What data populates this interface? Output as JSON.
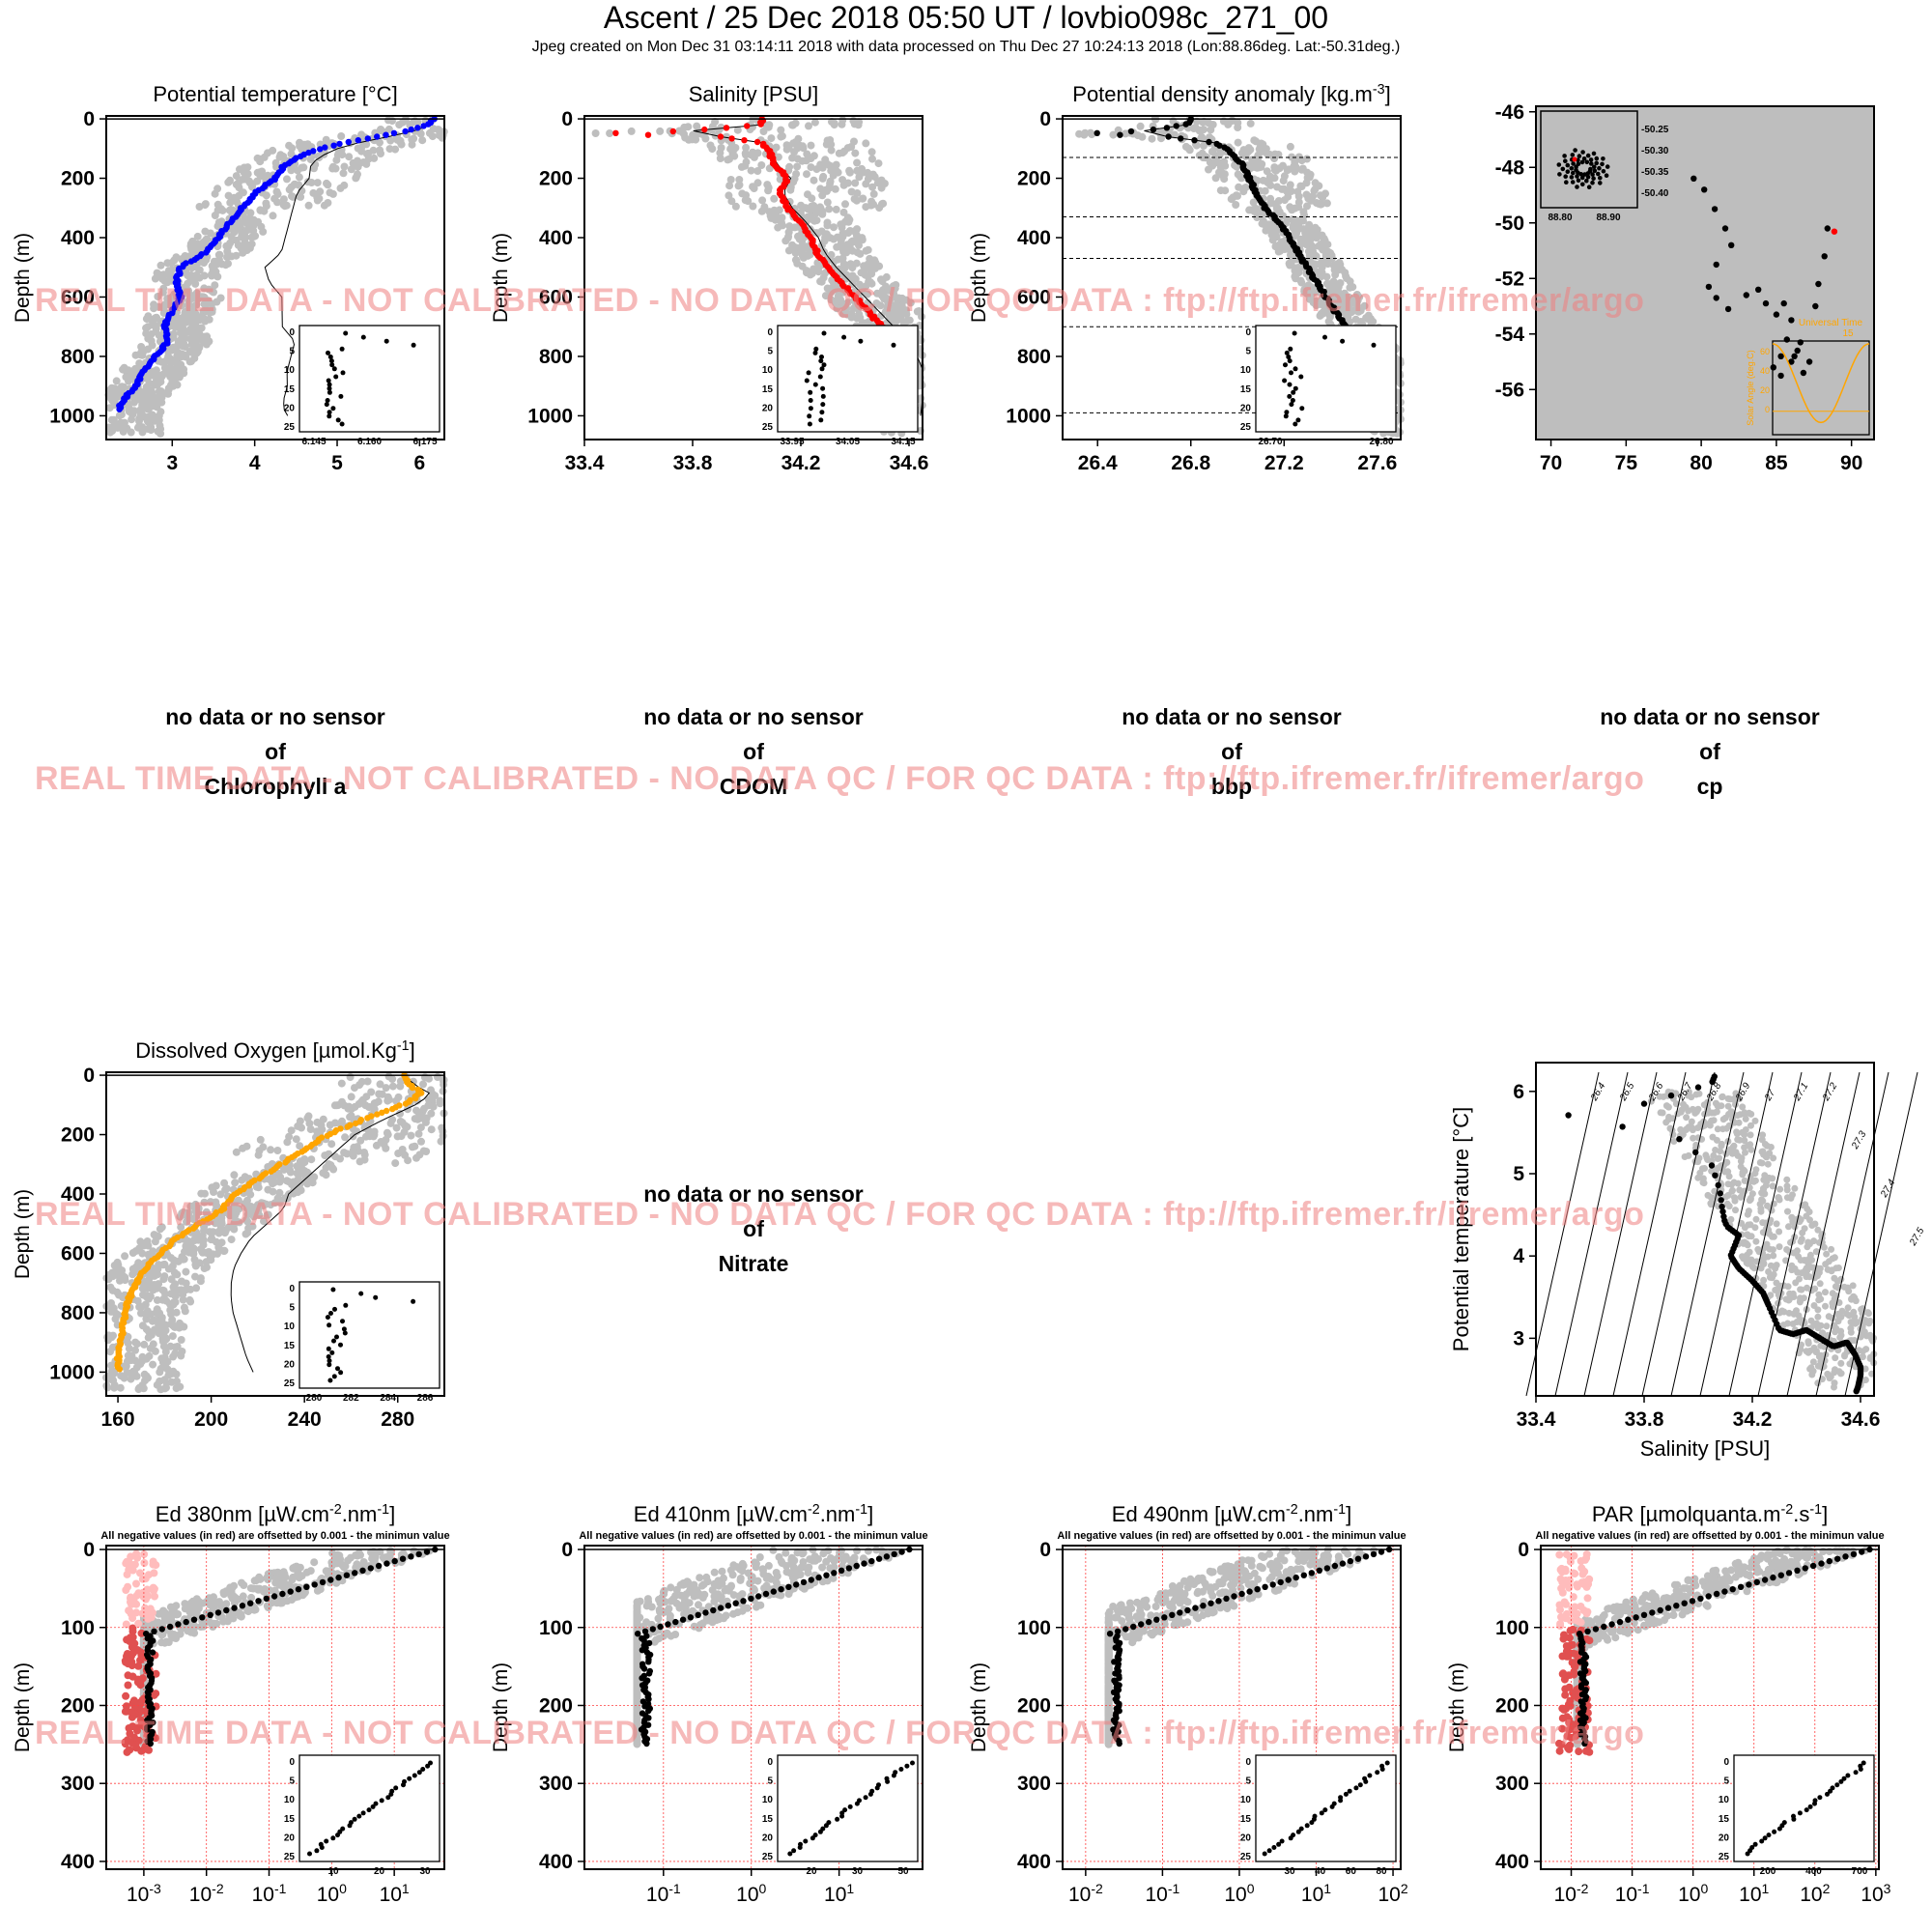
{
  "header": {
    "title": "Ascent / 25 Dec 2018 05:50 UT /  lovbio098c_271_00",
    "subtitle": "Jpeg created on Mon Dec 31 03:14:11 2018 with data processed on Thu Dec 27 10:24:13 2018 (Lon:88.86deg. Lat:-50.31deg.)"
  },
  "watermark": "REAL TIME DATA - NOT CALIBRATED - NO DATA QC   /  FOR QC DATA : ftp://ftp.ifremer.fr/ifremer/argo",
  "colors": {
    "background": "#bebebe",
    "temperature": "#0000ff",
    "salinity": "#ff0000",
    "density": "#000000",
    "oxygen": "#ffa500",
    "negative": "#ff8080",
    "watermark": "#f08080",
    "grid": "#ff4040"
  },
  "no_data_panels": [
    {
      "line1": "no data or no sensor",
      "line2": "of",
      "line3": "Chlorophyll a"
    },
    {
      "line1": "no data or no sensor",
      "line2": "of",
      "line3": "CDOM"
    },
    {
      "line1": "no data or no sensor",
      "line2": "of",
      "line3": "bbp"
    },
    {
      "line1": "no data or no sensor",
      "line2": "of",
      "line3": "cp"
    },
    {
      "line1": "no data or no sensor",
      "line2": "of",
      "line3": "Nitrate"
    }
  ],
  "chart_data": [
    {
      "id": "temperature",
      "type": "scatter",
      "title": "Potential temperature [°C]",
      "ylabel": "Depth (m)",
      "xlim": [
        2.2,
        6.3
      ],
      "ylim": [
        1080,
        -10
      ],
      "y_reversed": true,
      "xticks": [
        "3",
        "4",
        "5",
        "6"
      ],
      "yticks": [
        "0",
        "200",
        "400",
        "600",
        "800",
        "1000"
      ],
      "profile_depth": [
        0,
        20,
        40,
        60,
        80,
        100,
        120,
        140,
        160,
        180,
        200,
        250,
        300,
        350,
        400,
        450,
        500,
        550,
        600,
        650,
        700,
        750,
        800,
        850,
        900,
        950,
        980
      ],
      "profile_values": [
        6.18,
        6.1,
        5.85,
        5.5,
        5.1,
        4.8,
        4.6,
        4.45,
        4.35,
        4.3,
        4.25,
        4.0,
        3.85,
        3.7,
        3.55,
        3.4,
        3.1,
        3.05,
        3.1,
        3.0,
        2.9,
        2.95,
        2.8,
        2.65,
        2.55,
        2.4,
        2.35
      ],
      "inset": {
        "xticks": [
          "6.145",
          "6.160",
          "6.175"
        ],
        "yticks": [
          "0",
          "5",
          "10",
          "15",
          "20",
          "25"
        ]
      }
    },
    {
      "id": "salinity",
      "type": "scatter",
      "title": "Salinity [PSU]",
      "ylabel": "Depth (m)",
      "xlim": [
        33.4,
        34.65
      ],
      "ylim": [
        1080,
        -10
      ],
      "y_reversed": true,
      "xticks": [
        "33.4",
        "33.8",
        "34.2",
        "34.6"
      ],
      "yticks": [
        "0",
        "200",
        "400",
        "600",
        "800",
        "1000"
      ],
      "profile_depth": [
        0,
        20,
        40,
        50,
        60,
        80,
        100,
        150,
        200,
        250,
        300,
        350,
        400,
        450,
        500,
        550,
        600,
        650,
        700,
        750,
        800,
        850,
        900,
        950,
        1000
      ],
      "profile_values": [
        34.06,
        34.05,
        33.8,
        33.45,
        33.9,
        34.05,
        34.08,
        34.1,
        34.15,
        34.12,
        34.15,
        34.2,
        34.24,
        34.26,
        34.3,
        34.35,
        34.4,
        34.45,
        34.5,
        34.55,
        34.58,
        34.6,
        34.6,
        34.59,
        34.58
      ],
      "inset": {
        "xticks": [
          "33.95",
          "34.05",
          "34.15"
        ],
        "yticks": [
          "0",
          "5",
          "10",
          "15",
          "20",
          "25"
        ]
      }
    },
    {
      "id": "density",
      "type": "scatter",
      "title": "Potential density anomaly [kg.m",
      "title_sup": "-3",
      "title_end": "]",
      "ylabel": "Depth (m)",
      "xlim": [
        26.25,
        27.7
      ],
      "ylim": [
        1080,
        -10
      ],
      "y_reversed": true,
      "xticks": [
        "26.4",
        "26.8",
        "27.2",
        "27.6"
      ],
      "yticks": [
        "0",
        "200",
        "400",
        "600",
        "800",
        "1000"
      ],
      "mld_depths": [
        130,
        330,
        470,
        700,
        990
      ],
      "profile_depth": [
        0,
        20,
        40,
        50,
        60,
        80,
        100,
        150,
        200,
        250,
        300,
        350,
        400,
        450,
        500,
        550,
        600,
        650,
        700,
        750,
        800,
        850,
        900,
        950,
        1000
      ],
      "profile_values": [
        26.8,
        26.78,
        26.6,
        26.35,
        26.7,
        26.9,
        26.95,
        27.02,
        27.05,
        27.08,
        27.12,
        27.18,
        27.22,
        27.26,
        27.3,
        27.34,
        27.38,
        27.42,
        27.47,
        27.52,
        27.56,
        27.58,
        27.6,
        27.62,
        27.64
      ],
      "inset": {
        "xticks": [
          "26.70",
          "26.80"
        ],
        "yticks": [
          "0",
          "5",
          "10",
          "15",
          "20",
          "25"
        ]
      }
    },
    {
      "id": "trajectory",
      "type": "scatter",
      "xlim": [
        69,
        91.5
      ],
      "ylim": [
        -57.8,
        -45.8
      ],
      "xticks": [
        "70",
        "75",
        "80",
        "85",
        "90"
      ],
      "yticks": [
        "-46",
        "-48",
        "-50",
        "-52",
        "-54",
        "-56"
      ],
      "lon": [
        79.5,
        80.2,
        80.9,
        81.6,
        82.0,
        81.0,
        80.5,
        81.0,
        81.8,
        83.0,
        83.8,
        84.3,
        85.0,
        85.5,
        86.0,
        85.7,
        85.3,
        84.8,
        85.3,
        86.0,
        86.4,
        86.6,
        86.2,
        86.8,
        87.2,
        87.6,
        87.8,
        88.2,
        88.4,
        88.86
      ],
      "lat": [
        -48.4,
        -48.8,
        -49.5,
        -50.2,
        -50.8,
        -51.5,
        -52.3,
        -52.7,
        -53.1,
        -52.6,
        -52.4,
        -52.9,
        -53.3,
        -52.9,
        -53.5,
        -54.2,
        -54.8,
        -55.2,
        -55.5,
        -55.0,
        -54.6,
        -54.3,
        -54.8,
        -55.4,
        -55.0,
        -53.0,
        -52.2,
        -51.2,
        -50.2,
        -50.31
      ],
      "inset_left": {
        "xticks": [
          "88.80",
          "88.90"
        ],
        "yticks": [
          "-50.25",
          "-50.30",
          "-50.35",
          "-50.40"
        ]
      },
      "inset_right": {
        "title": "Universal Time",
        "tick": "15",
        "ylabel": "Solar Angle (deg.C)",
        "yticks": [
          "60",
          "40",
          "20",
          "0"
        ]
      }
    },
    {
      "id": "oxygen",
      "type": "scatter",
      "title": "Dissolved Oxygen [µmol.Kg",
      "title_sup": "-1",
      "title_end": "]",
      "ylabel": "Depth (m)",
      "xlim": [
        155,
        300
      ],
      "ylim": [
        1080,
        -10
      ],
      "y_reversed": true,
      "xticks": [
        "160",
        "200",
        "240",
        "280"
      ],
      "yticks": [
        "0",
        "200",
        "400",
        "600",
        "800",
        "1000"
      ],
      "profile_depth": [
        0,
        30,
        60,
        90,
        120,
        150,
        200,
        250,
        300,
        350,
        400,
        450,
        500,
        550,
        600,
        650,
        700,
        750,
        800,
        850,
        900,
        950,
        990
      ],
      "profile_values": [
        283,
        285,
        290,
        285,
        275,
        265,
        250,
        240,
        230,
        220,
        210,
        205,
        195,
        185,
        178,
        172,
        168,
        165,
        163,
        162,
        161,
        160,
        160
      ],
      "inset": {
        "xticks": [
          "280",
          "282",
          "284",
          "286"
        ],
        "yticks": [
          "0",
          "5",
          "10",
          "15",
          "20",
          "25"
        ]
      }
    },
    {
      "id": "ts",
      "type": "scatter",
      "xlabel": "Salinity [PSU]",
      "ylabel": "Potential temperature [°C]",
      "xlim": [
        33.4,
        34.65
      ],
      "ylim": [
        2.3,
        6.35
      ],
      "xticks": [
        "33.4",
        "33.8",
        "34.2",
        "34.6"
      ],
      "yticks": [
        "3",
        "4",
        "5",
        "6"
      ],
      "isopycnals": [
        "26.4",
        "26.5",
        "26.6",
        "26.7",
        "26.8",
        "26.9",
        "27",
        "27.1",
        "27.2",
        "27.3",
        "27.4",
        "27.5"
      ]
    },
    {
      "id": "ed380",
      "type": "scatter",
      "title": "Ed 380nm [µW.cm",
      "title_sup": "-2",
      "title_mid": ".nm",
      "title_sup2": "-1",
      "title_end": "]",
      "note": "All negative values (in red) are offsetted by 0.001 - the minimun value",
      "ylabel": "Depth (m)",
      "xscale": "log",
      "xlim": [
        -3.6,
        1.8
      ],
      "ylim": [
        410,
        -5
      ],
      "xticks": [
        "10",
        "10",
        "10",
        "10",
        "10"
      ],
      "xtick_exps": [
        "-3",
        "-2",
        "-1",
        "0",
        "1"
      ],
      "yticks": [
        "0",
        "100",
        "200",
        "300",
        "400"
      ],
      "inset": {
        "xticks": [
          "10",
          "20",
          "30"
        ],
        "yticks": [
          "0",
          "5",
          "10",
          "15",
          "20",
          "25"
        ]
      }
    },
    {
      "id": "ed410",
      "type": "scatter",
      "title": "Ed 410nm [µW.cm",
      "title_sup": "-2",
      "title_mid": ".nm",
      "title_sup2": "-1",
      "title_end": "]",
      "note": "All negative values (in red) are offsetted by 0.001 - the minimun value",
      "ylabel": "Depth (m)",
      "xscale": "log",
      "xlim": [
        -1.9,
        1.95
      ],
      "ylim": [
        410,
        -5
      ],
      "xticks": [
        "10",
        "10",
        "10"
      ],
      "xtick_exps": [
        "-1",
        "0",
        "1"
      ],
      "yticks": [
        "0",
        "100",
        "200",
        "300",
        "400"
      ],
      "inset": {
        "xticks": [
          "20",
          "30",
          "50"
        ],
        "yticks": [
          "0",
          "5",
          "10",
          "15",
          "20",
          "25"
        ]
      }
    },
    {
      "id": "ed490",
      "type": "scatter",
      "title": "Ed 490nm [µW.cm",
      "title_sup": "-2",
      "title_mid": ".nm",
      "title_sup2": "-1",
      "title_end": "]",
      "note": "All negative values (in red) are offsetted by 0.001 - the minimun value",
      "ylabel": "Depth (m)",
      "xscale": "log",
      "xlim": [
        -2.3,
        2.1
      ],
      "ylim": [
        410,
        -5
      ],
      "xticks": [
        "10",
        "10",
        "10",
        "10",
        "10"
      ],
      "xtick_exps": [
        "-2",
        "-1",
        "0",
        "1",
        "2"
      ],
      "yticks": [
        "0",
        "100",
        "200",
        "300",
        "400"
      ],
      "inset": {
        "xticks": [
          "30",
          "40",
          "60",
          "80"
        ],
        "yticks": [
          "0",
          "5",
          "10",
          "15",
          "20",
          "25"
        ]
      }
    },
    {
      "id": "par",
      "type": "scatter",
      "title": "PAR [µmolquanta.m",
      "title_sup": "-2",
      "title_mid": ".s",
      "title_sup2": "-1",
      "title_end": "]",
      "note": "All negative values (in red) are offsetted by 0.001 - the minimun value",
      "ylabel": "Depth (m)",
      "xscale": "log",
      "xlim": [
        -2.5,
        3.05
      ],
      "ylim": [
        410,
        -5
      ],
      "xticks": [
        "10",
        "10",
        "10",
        "10",
        "10",
        "10"
      ],
      "xtick_exps": [
        "-2",
        "-1",
        "0",
        "1",
        "2",
        "3"
      ],
      "yticks": [
        "0",
        "100",
        "200",
        "300",
        "400"
      ],
      "inset": {
        "xticks": [
          "200",
          "400",
          "700"
        ],
        "yticks": [
          "0",
          "5",
          "10",
          "15",
          "20",
          "25"
        ]
      }
    }
  ]
}
